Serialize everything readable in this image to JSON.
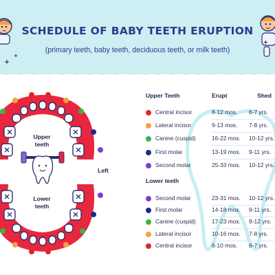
{
  "title": "SCHEDULE OF BABY TEETH ERUPTION",
  "subtitle": "(primary teeth, baby teeth, deciduous teeth, or milk teeth)",
  "diagram": {
    "upper_label_1": "Upper",
    "upper_label_2": "teeth",
    "lower_label_1": "Lower",
    "lower_label_2": "teeth",
    "side_label": "Left"
  },
  "table": {
    "headers": {
      "upper": "Upper Teeth",
      "erupt": "Erupt",
      "shed": "Shed",
      "lower": "Lower teeth"
    },
    "upper": [
      {
        "name": "Central incisor",
        "erupt": "8-12 mos.",
        "shed": "6-7 yrs.",
        "color": "#e3242b"
      },
      {
        "name": "Lateral incisor",
        "erupt": "9-13 mos.",
        "shed": "7-8 yrs.",
        "color": "#f4a142"
      },
      {
        "name": "Canine (cuspid)",
        "erupt": "16-22 mos.",
        "shed": "10-12 yrs.",
        "color": "#3ab54a"
      },
      {
        "name": "First molar",
        "erupt": "13-19 mos.",
        "shed": "9-11 yrs.",
        "color": "#1f2a8c"
      },
      {
        "name": "Second molar",
        "erupt": "25-33 mos.",
        "shed": "10-12 yrs.",
        "color": "#7b3fd1"
      }
    ],
    "lower": [
      {
        "name": "Second molar",
        "erupt": "23-31 mos.",
        "shed": "10-12 yrs.",
        "color": "#7b3fd1"
      },
      {
        "name": "First molar",
        "erupt": "14-18 mos.",
        "shed": "9-11 yrs.",
        "color": "#1f2a8c"
      },
      {
        "name": "Canine (cuspid)",
        "erupt": "17-23 mos.",
        "shed": "9-12 yrs.",
        "color": "#3ab54a"
      },
      {
        "name": "Lateral incisor",
        "erupt": "10-16 mos.",
        "shed": "7-8 yrs.",
        "color": "#f4a142"
      },
      {
        "name": "Central incisor",
        "erupt": "6-10 mos.",
        "shed": "6-7 yrs.",
        "color": "#e3242b"
      }
    ]
  },
  "colors": {
    "header_bg": "#cdeef2",
    "title": "#2d3a8c",
    "gum": "#e8263d",
    "tooth_outline": "#2b2f6b"
  }
}
